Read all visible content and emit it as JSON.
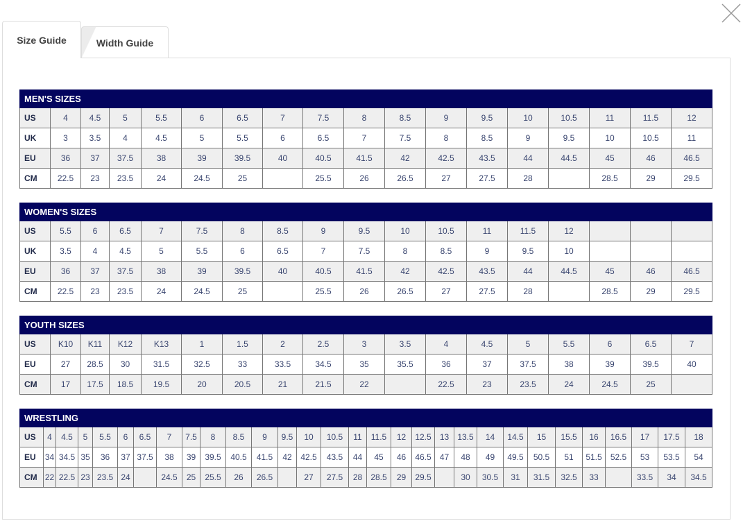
{
  "tabs": [
    {
      "label": "Size Guide",
      "active": true
    },
    {
      "label": "Width Guide",
      "active": false
    }
  ],
  "colors": {
    "header": "#03045e",
    "row_alt": "#efefef",
    "text": "#3a4670"
  },
  "tables": [
    {
      "title": "MEN'S SIZES",
      "rows": [
        {
          "label": "US",
          "values": [
            "4",
            "4.5",
            "5",
            "5.5",
            "6",
            "6.5",
            "7",
            "7.5",
            "8",
            "8.5",
            "9",
            "9.5",
            "10",
            "10.5",
            "11",
            "11.5",
            "12"
          ]
        },
        {
          "label": "UK",
          "values": [
            "3",
            "3.5",
            "4",
            "4.5",
            "5",
            "5.5",
            "6",
            "6.5",
            "7",
            "7.5",
            "8",
            "8.5",
            "9",
            "9.5",
            "10",
            "10.5",
            "11"
          ]
        },
        {
          "label": "EU",
          "values": [
            "36",
            "37",
            "37.5",
            "38",
            "39",
            "39.5",
            "40",
            "40.5",
            "41.5",
            "42",
            "42.5",
            "43.5",
            "44",
            "44.5",
            "45",
            "46",
            "46.5"
          ]
        },
        {
          "label": "CM",
          "values": [
            "22.5",
            "23",
            "23.5",
            "24",
            "24.5",
            "25",
            "",
            "25.5",
            "26",
            "26.5",
            "27",
            "27.5",
            "28",
            "",
            "28.5",
            "29",
            "29.5"
          ]
        }
      ]
    },
    {
      "title": "WOMEN'S SIZES",
      "rows": [
        {
          "label": "US",
          "values": [
            "5.5",
            "6",
            "6.5",
            "7",
            "7.5",
            "8",
            "8.5",
            "9",
            "9.5",
            "10",
            "10.5",
            "11",
            "11.5",
            "12",
            "",
            "",
            ""
          ]
        },
        {
          "label": "UK",
          "values": [
            "3.5",
            "4",
            "4.5",
            "5",
            "5.5",
            "6",
            "6.5",
            "7",
            "7.5",
            "8",
            "8.5",
            "9",
            "9.5",
            "10",
            "",
            "",
            ""
          ]
        },
        {
          "label": "EU",
          "values": [
            "36",
            "37",
            "37.5",
            "38",
            "39",
            "39.5",
            "40",
            "40.5",
            "41.5",
            "42",
            "42.5",
            "43.5",
            "44",
            "44.5",
            "45",
            "46",
            "46.5"
          ]
        },
        {
          "label": "CM",
          "values": [
            "22.5",
            "23",
            "23.5",
            "24",
            "24.5",
            "25",
            "",
            "25.5",
            "26",
            "26.5",
            "27",
            "27.5",
            "28",
            "",
            "28.5",
            "29",
            "29.5"
          ]
        }
      ]
    },
    {
      "title": "YOUTH SIZES",
      "rows": [
        {
          "label": "US",
          "values": [
            "K10",
            "K11",
            "K12",
            "K13",
            "1",
            "1.5",
            "2",
            "2.5",
            "3",
            "3.5",
            "4",
            "4.5",
            "5",
            "5.5",
            "6",
            "6.5",
            "7"
          ]
        },
        {
          "label": "EU",
          "values": [
            "27",
            "28.5",
            "30",
            "31.5",
            "32.5",
            "33",
            "33.5",
            "34.5",
            "35",
            "35.5",
            "36",
            "37",
            "37.5",
            "38",
            "39",
            "39.5",
            "40"
          ]
        },
        {
          "label": "CM",
          "values": [
            "17",
            "17.5",
            "18.5",
            "19.5",
            "20",
            "20.5",
            "21",
            "21.5",
            "22",
            "",
            "22.5",
            "23",
            "23.5",
            "24",
            "24.5",
            "25",
            ""
          ]
        }
      ]
    },
    {
      "title": "WRESTLING",
      "rows": [
        {
          "label": "US",
          "values": [
            "4",
            "4.5",
            "5",
            "5.5",
            "6",
            "6.5",
            "7",
            "7.5",
            "8",
            "8.5",
            "9",
            "9.5",
            "10",
            "10.5",
            "11",
            "11.5",
            "12",
            "12.5",
            "13",
            "13.5",
            "14",
            "14.5",
            "15",
            "15.5",
            "16",
            "16.5",
            "17",
            "17.5",
            "18"
          ]
        },
        {
          "label": "EU",
          "values": [
            "34",
            "34.5",
            "35",
            "36",
            "37",
            "37.5",
            "38",
            "39",
            "39.5",
            "40.5",
            "41.5",
            "42",
            "42.5",
            "43.5",
            "44",
            "45",
            "46",
            "46.5",
            "47",
            "48",
            "49",
            "49.5",
            "50.5",
            "51",
            "51.5",
            "52.5",
            "53",
            "53.5",
            "54"
          ]
        },
        {
          "label": "CM",
          "values": [
            "22",
            "22.5",
            "23",
            "23.5",
            "24",
            "",
            "24.5",
            "25",
            "25.5",
            "26",
            "26.5",
            "",
            "27",
            "27.5",
            "28",
            "28.5",
            "29",
            "29.5",
            "",
            "30",
            "30.5",
            "31",
            "31.5",
            "32.5",
            "33",
            "",
            "33.5",
            "34",
            "34.5"
          ]
        }
      ]
    }
  ]
}
